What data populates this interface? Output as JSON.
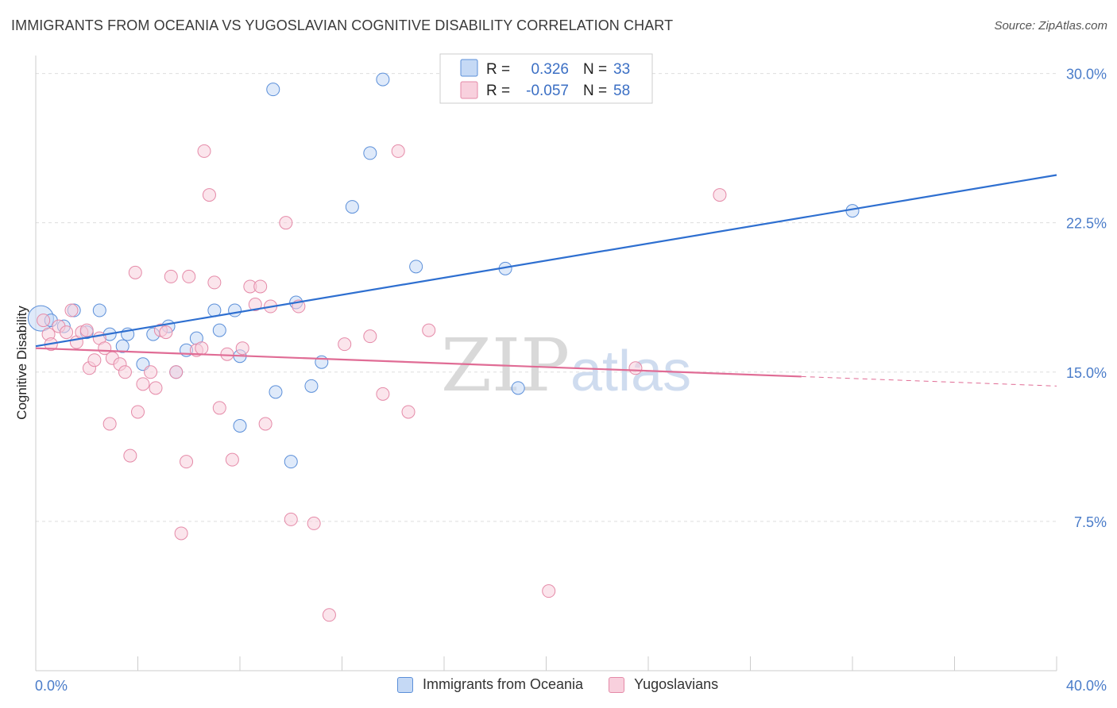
{
  "title": "IMMIGRANTS FROM OCEANIA VS YUGOSLAVIAN COGNITIVE DISABILITY CORRELATION CHART",
  "source": "Source: ZipAtlas.com",
  "watermark": {
    "zip": "ZIP",
    "atlas": "atlas"
  },
  "colors": {
    "blue": "#5b8fd9",
    "blue_fill": "#c5d9f5",
    "blue_line": "#2e6fd0",
    "pink": "#e58aa8",
    "pink_fill": "#f8d0dd",
    "pink_line": "#e06c95",
    "tick_label": "#4a7cc9"
  },
  "stats_legend": [
    {
      "r_label": "R =",
      "r_value": "0.326",
      "n_label": "N =",
      "n_value": "33"
    },
    {
      "r_label": "R =",
      "r_value": "-0.057",
      "n_label": "N =",
      "n_value": "58"
    }
  ],
  "chart_data": {
    "type": "scatter",
    "title": "IMMIGRANTS FROM OCEANIA VS YUGOSLAVIAN COGNITIVE DISABILITY CORRELATION CHART",
    "xlabel": "",
    "ylabel": "Cognitive Disability",
    "xlim": [
      0,
      40
    ],
    "ylim": [
      0,
      30.9
    ],
    "x_tick_labels": [
      "0.0%",
      "40.0%"
    ],
    "y_ticks": [
      7.5,
      15.0,
      22.5,
      30.0
    ],
    "y_tick_labels": [
      "7.5%",
      "15.0%",
      "22.5%",
      "30.0%"
    ],
    "grid": true,
    "legend_position": "bottom",
    "series": [
      {
        "name": "Immigrants from Oceania",
        "color": "#5b8fd9",
        "trend": {
          "x": [
            0,
            40
          ],
          "y": [
            16.3,
            24.9
          ],
          "dashed_from": null
        },
        "points": [
          [
            0.2,
            17.7
          ],
          [
            0.6,
            17.6
          ],
          [
            1.1,
            17.3
          ],
          [
            1.5,
            18.1
          ],
          [
            2.0,
            17.0
          ],
          [
            2.5,
            18.1
          ],
          [
            2.9,
            16.9
          ],
          [
            3.4,
            16.3
          ],
          [
            3.6,
            16.9
          ],
          [
            4.2,
            15.4
          ],
          [
            4.6,
            16.9
          ],
          [
            5.2,
            17.3
          ],
          [
            5.5,
            15.0
          ],
          [
            5.9,
            16.1
          ],
          [
            6.3,
            16.7
          ],
          [
            7.0,
            18.1
          ],
          [
            7.2,
            17.1
          ],
          [
            7.8,
            18.1
          ],
          [
            8.0,
            15.8
          ],
          [
            8.0,
            12.3
          ],
          [
            9.3,
            29.2
          ],
          [
            9.4,
            14.0
          ],
          [
            10.0,
            10.5
          ],
          [
            10.2,
            18.5
          ],
          [
            10.8,
            14.3
          ],
          [
            11.2,
            15.5
          ],
          [
            12.4,
            23.3
          ],
          [
            13.1,
            26.0
          ],
          [
            13.6,
            29.7
          ],
          [
            14.9,
            20.3
          ],
          [
            18.4,
            20.2
          ],
          [
            18.9,
            14.2
          ],
          [
            32.0,
            23.1
          ]
        ]
      },
      {
        "name": "Yugoslavians",
        "color": "#e58aa8",
        "trend": {
          "x": [
            0,
            40
          ],
          "y": [
            16.2,
            14.3
          ],
          "dashed_from": 30
        },
        "points": [
          [
            0.3,
            17.6
          ],
          [
            0.5,
            16.9
          ],
          [
            0.6,
            16.4
          ],
          [
            0.9,
            17.3
          ],
          [
            1.2,
            17.0
          ],
          [
            1.4,
            18.1
          ],
          [
            1.6,
            16.5
          ],
          [
            1.8,
            17.0
          ],
          [
            2.0,
            17.1
          ],
          [
            2.1,
            15.2
          ],
          [
            2.3,
            15.6
          ],
          [
            2.5,
            16.7
          ],
          [
            2.7,
            16.2
          ],
          [
            2.9,
            12.4
          ],
          [
            3.0,
            15.7
          ],
          [
            3.3,
            15.4
          ],
          [
            3.5,
            15.0
          ],
          [
            3.7,
            10.8
          ],
          [
            3.9,
            20.0
          ],
          [
            4.0,
            13.0
          ],
          [
            4.2,
            14.4
          ],
          [
            4.5,
            15.0
          ],
          [
            4.7,
            14.2
          ],
          [
            4.9,
            17.1
          ],
          [
            5.1,
            17.0
          ],
          [
            5.3,
            19.8
          ],
          [
            5.5,
            15.0
          ],
          [
            5.7,
            6.9
          ],
          [
            5.9,
            10.5
          ],
          [
            6.0,
            19.8
          ],
          [
            6.3,
            16.1
          ],
          [
            6.5,
            16.2
          ],
          [
            6.6,
            26.1
          ],
          [
            6.8,
            23.9
          ],
          [
            7.0,
            19.5
          ],
          [
            7.2,
            13.2
          ],
          [
            7.5,
            15.9
          ],
          [
            7.7,
            10.6
          ],
          [
            8.1,
            16.2
          ],
          [
            8.4,
            19.3
          ],
          [
            8.6,
            18.4
          ],
          [
            8.8,
            19.3
          ],
          [
            9.0,
            12.4
          ],
          [
            9.2,
            18.3
          ],
          [
            9.8,
            22.5
          ],
          [
            10.0,
            7.6
          ],
          [
            10.3,
            18.3
          ],
          [
            10.9,
            7.4
          ],
          [
            11.5,
            2.8
          ],
          [
            12.1,
            16.4
          ],
          [
            13.1,
            16.8
          ],
          [
            13.6,
            13.9
          ],
          [
            14.2,
            26.1
          ],
          [
            14.6,
            13.0
          ],
          [
            15.4,
            17.1
          ],
          [
            20.1,
            4.0
          ],
          [
            23.5,
            15.2
          ],
          [
            26.8,
            23.9
          ]
        ]
      }
    ],
    "bubble_sizes": {
      "default": 8,
      "large_points": [
        {
          "series": 0,
          "index": 0,
          "radius": 16
        }
      ]
    }
  }
}
